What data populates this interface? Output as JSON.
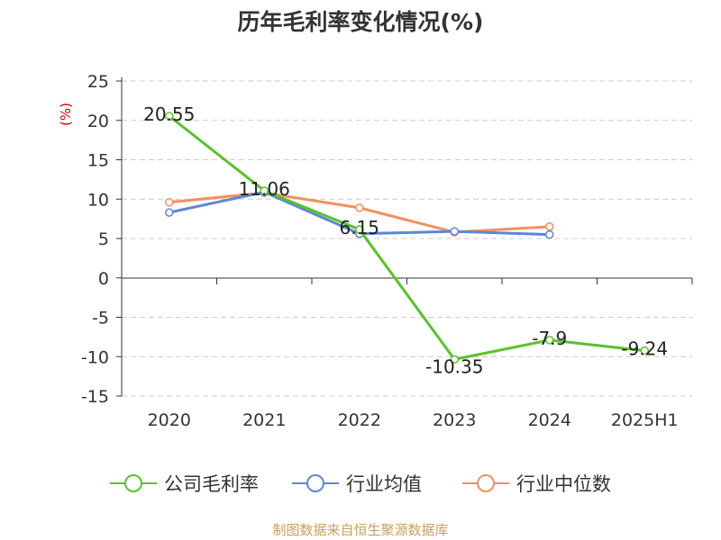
{
  "chart_data": {
    "type": "line",
    "title": "历年毛利率变化情况(%)",
    "ylabel": "(%)",
    "xlabel": "",
    "categories": [
      "2020",
      "2021",
      "2022",
      "2023",
      "2024",
      "2025H1"
    ],
    "ylim": [
      -15,
      25
    ],
    "yticks": [
      25,
      20,
      15,
      10,
      5,
      0,
      -5,
      -10,
      -15
    ],
    "grid": true,
    "legend_position": "bottom",
    "series": [
      {
        "name": "公司毛利率",
        "color": "#5cc12d",
        "values": [
          20.55,
          11.06,
          6.15,
          -10.35,
          -7.9,
          -9.24
        ],
        "data_labels": [
          "20.55",
          "11.06",
          "6.15",
          "-10.35",
          "-7.9",
          "-9.24"
        ]
      },
      {
        "name": "行业均值",
        "color": "#5b87d8",
        "values": [
          8.3,
          10.9,
          5.6,
          5.9,
          5.5,
          null
        ]
      },
      {
        "name": "行业中位数",
        "color": "#f4905e",
        "values": [
          9.6,
          10.8,
          8.9,
          5.8,
          6.5,
          null
        ]
      }
    ]
  },
  "footer": {
    "source": "制图数据来自恒生聚源数据库"
  }
}
